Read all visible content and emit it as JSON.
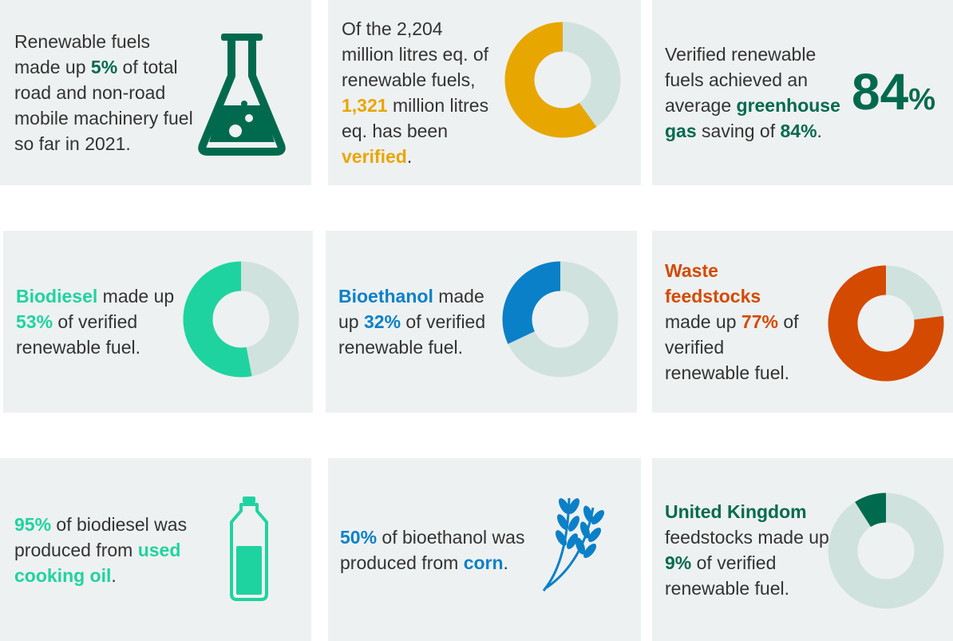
{
  "track_color": "#cfe2de",
  "cards": [
    {
      "text": [
        {
          "t": "Renewable fuels made up "
        },
        {
          "t": "5%",
          "color": "#006a4e"
        },
        {
          "t": " of total road and non-road mobile machinery fuel so far in 2021."
        }
      ]
    },
    {
      "text": [
        {
          "t": "Of the 2,204 million litres eq. of renewable fuels, "
        },
        {
          "t": "1,321",
          "color": "#e8a600"
        },
        {
          "t": " million litres eq. has been "
        },
        {
          "t": "verified",
          "color": "#e8a600"
        },
        {
          "t": "."
        }
      ],
      "donut": {
        "value": 1321,
        "of": 2204,
        "color": "#e8a600"
      }
    },
    {
      "text": [
        {
          "t": "Verified renewable fuels achieved an average "
        },
        {
          "t": "greenhouse gas",
          "color": "#006a4e"
        },
        {
          "t": " saving of "
        },
        {
          "t": "84%",
          "color": "#006a4e"
        },
        {
          "t": "."
        }
      ],
      "big": {
        "number": "84",
        "unit": "%",
        "color": "#006a4e"
      }
    },
    {
      "text": [
        {
          "t": "Biodiesel",
          "color": "#1fd3a0"
        },
        {
          "t": " made up "
        },
        {
          "t": "53%",
          "color": "#1fd3a0"
        },
        {
          "t": " of verified renewable fuel."
        }
      ],
      "donut": {
        "value": 53,
        "color": "#1fd3a0"
      }
    },
    {
      "text": [
        {
          "t": "Bioethanol",
          "color": "#0a80c8"
        },
        {
          "t": " made up "
        },
        {
          "t": "32%",
          "color": "#0a80c8"
        },
        {
          "t": " of verified renewable fuel."
        }
      ],
      "donut": {
        "value": 32,
        "color": "#0a80c8"
      }
    },
    {
      "text": [
        {
          "t": "Waste feedstocks",
          "color": "#d44a00"
        },
        {
          "t": " made up "
        },
        {
          "t": "77%",
          "color": "#d44a00"
        },
        {
          "t": " of verified renewable fuel."
        }
      ],
      "donut": {
        "value": 77,
        "color": "#d44a00"
      }
    },
    {
      "text": [
        {
          "t": "95%",
          "color": "#1fd3a0"
        },
        {
          "t": " of biodiesel was produced from "
        },
        {
          "t": "used cooking oil",
          "color": "#1fd3a0"
        },
        {
          "t": "."
        }
      ]
    },
    {
      "text": [
        {
          "t": "50%",
          "color": "#0a80c8"
        },
        {
          "t": " of bioethanol was produced from "
        },
        {
          "t": "corn",
          "color": "#0a80c8"
        },
        {
          "t": "."
        }
      ]
    },
    {
      "text": [
        {
          "t": "United Kingdom",
          "color": "#006a4e"
        },
        {
          "t": " feedstocks made up "
        },
        {
          "t": "9%",
          "color": "#006a4e"
        },
        {
          "t": " of verified renewable fuel."
        }
      ],
      "donut": {
        "value": 9,
        "color": "#006a4e"
      }
    }
  ]
}
